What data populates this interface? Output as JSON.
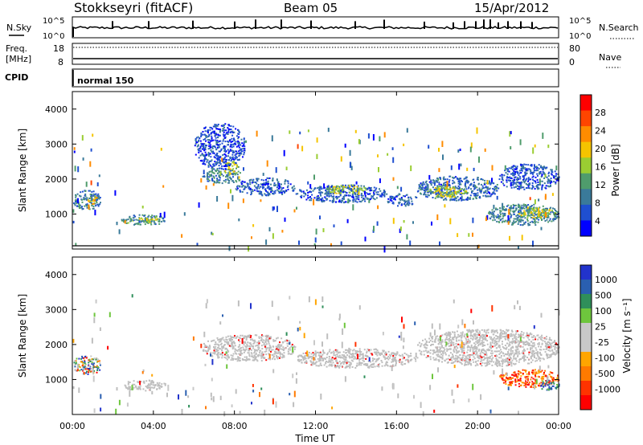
{
  "header": {
    "station": "Stokkseyri (fitACF)",
    "beam": "Beam 05",
    "date": "15/Apr/2012"
  },
  "panels": {
    "noise": {
      "label": "N.Sky",
      "left_top": "10^5",
      "left_bottom": "10^0",
      "right_top": "10^5",
      "right_bottom": "10^0",
      "right_label": "N.Search"
    },
    "freq": {
      "label_line1": "Freq.",
      "label_line2": "[MHz]",
      "left_top": "18",
      "left_bottom": "8",
      "right_top": "80",
      "right_bottom": "0",
      "right_label": "Nave"
    },
    "cpid": {
      "label": "CPID",
      "value": "normal 150"
    }
  },
  "colors": {
    "power_scale": [
      "#0000ff",
      "#1f4fd0",
      "#3a7a9a",
      "#4f9c6c",
      "#9acd32",
      "#f5c400",
      "#ff8c00",
      "#ff4500",
      "#ff0000"
    ],
    "velocity_scale": [
      "#2233cc",
      "#2a5fb0",
      "#2f8f5a",
      "#6ec63d",
      "#c8c8c8",
      "#c8c8c8",
      "#ffa500",
      "#ff7a00",
      "#ff3300",
      "#ff0000"
    ],
    "ground_scatter": "#bebebe"
  },
  "chart_data": [
    {
      "type": "heatmap",
      "quantity": "Power",
      "ylabel": "Slant Range [km]",
      "yticks": [
        "1000",
        "2000",
        "3000",
        "4000"
      ],
      "colorbar_label": "Power [dB]",
      "colorbar_ticks": [
        "4",
        "8",
        "12",
        "16",
        "20",
        "24",
        "28"
      ],
      "clim": [
        0,
        30
      ],
      "xlim": [
        0,
        24
      ],
      "ylim": [
        0,
        4500
      ],
      "blobs": [
        {
          "t0": 0.0,
          "t1": 1.4,
          "r0": 1150,
          "r1": 1700,
          "level": 8
        },
        {
          "t0": 0.7,
          "t1": 1.2,
          "r0": 1300,
          "r1": 1550,
          "level": 18
        },
        {
          "t0": 2.4,
          "t1": 4.6,
          "r0": 700,
          "r1": 1000,
          "level": 10
        },
        {
          "t0": 3.2,
          "t1": 4.2,
          "r0": 780,
          "r1": 920,
          "level": 16
        },
        {
          "t0": 6.4,
          "t1": 8.4,
          "r0": 1900,
          "r1": 2300,
          "level": 9
        },
        {
          "t0": 7.4,
          "t1": 8.2,
          "r0": 2100,
          "r1": 2500,
          "level": 16
        },
        {
          "t0": 8.0,
          "t1": 11.0,
          "r0": 1550,
          "r1": 2050,
          "level": 6
        },
        {
          "t0": 11.0,
          "t1": 15.5,
          "r0": 1350,
          "r1": 1850,
          "level": 6
        },
        {
          "t0": 12.5,
          "t1": 14.5,
          "r0": 1600,
          "r1": 1850,
          "level": 15
        },
        {
          "t0": 15.5,
          "t1": 17.0,
          "r0": 1250,
          "r1": 1600,
          "level": 6
        },
        {
          "t0": 17.0,
          "t1": 21.0,
          "r0": 1400,
          "r1": 2100,
          "level": 7
        },
        {
          "t0": 17.5,
          "t1": 19.5,
          "r0": 1500,
          "r1": 1800,
          "level": 15
        },
        {
          "t0": 21.0,
          "t1": 24.0,
          "r0": 1700,
          "r1": 2450,
          "level": 6
        },
        {
          "t0": 20.5,
          "t1": 24.0,
          "r0": 700,
          "r1": 1300,
          "level": 9
        },
        {
          "t0": 22.0,
          "t1": 23.8,
          "r0": 900,
          "r1": 1200,
          "level": 15
        },
        {
          "t0": 6.0,
          "t1": 8.5,
          "r0": 2300,
          "r1": 3600,
          "level": 5
        }
      ]
    },
    {
      "type": "heatmap",
      "quantity": "Velocity",
      "ylabel": "Slant Range [km]",
      "yticks": [
        "1000",
        "2000",
        "3000",
        "4000"
      ],
      "xticks": [
        "00:00",
        "04:00",
        "08:00",
        "12:00",
        "16:00",
        "20:00",
        "00:00"
      ],
      "xlabel": "Time UT",
      "colorbar_label": "Velocity [m s⁻¹]",
      "colorbar_ticks": [
        "1000",
        "500",
        "100",
        "25",
        "-25",
        "-100",
        "-500",
        "-1000"
      ],
      "xlim": [
        0,
        24
      ],
      "ylim": [
        0,
        4500
      ],
      "blobs": [
        {
          "t0": 0.0,
          "t1": 1.4,
          "r0": 1150,
          "r1": 1700,
          "level": "mixed"
        },
        {
          "t0": 2.4,
          "t1": 4.6,
          "r0": 700,
          "r1": 1000,
          "level": "ground"
        },
        {
          "t0": 6.4,
          "t1": 11.0,
          "r0": 1550,
          "r1": 2300,
          "level": "ground"
        },
        {
          "t0": 11.0,
          "t1": 17.0,
          "r0": 1350,
          "r1": 1900,
          "level": "ground"
        },
        {
          "t0": 17.0,
          "t1": 24.0,
          "r0": 1400,
          "r1": 2450,
          "level": "ground"
        },
        {
          "t0": 21.0,
          "t1": 24.0,
          "r0": 800,
          "r1": 1300,
          "level": "negative"
        },
        {
          "t0": 23.0,
          "t1": 24.0,
          "r0": 700,
          "r1": 1000,
          "level": "positive"
        }
      ]
    }
  ]
}
